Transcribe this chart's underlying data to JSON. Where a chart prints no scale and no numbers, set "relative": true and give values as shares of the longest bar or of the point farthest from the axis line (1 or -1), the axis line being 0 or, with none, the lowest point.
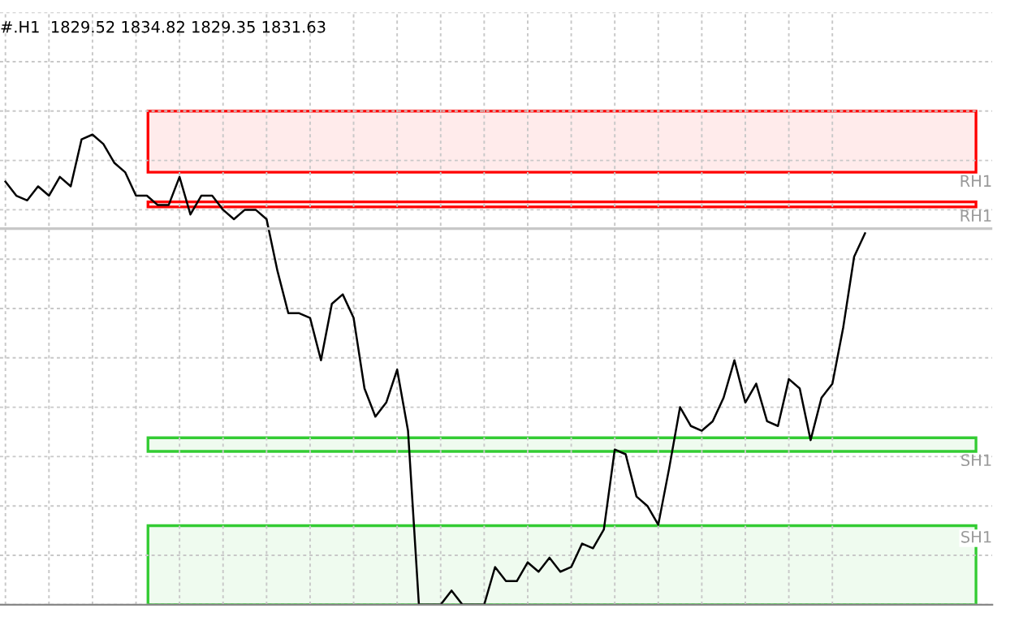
{
  "chart_data": {
    "type": "line",
    "title": "#.H1  1829.52 1834.82 1829.35 1831.63",
    "relative": true,
    "categories": [
      null,
      null,
      null,
      null,
      null,
      null,
      null,
      null,
      null,
      null,
      null,
      null,
      null,
      null,
      null,
      null,
      null,
      null,
      null,
      null,
      null,
      null,
      null,
      null,
      null,
      null,
      null,
      null,
      null,
      null,
      null,
      null,
      null,
      null,
      null,
      null,
      null,
      null,
      null,
      null,
      null,
      null,
      null,
      null,
      null,
      null,
      null,
      null,
      null,
      null,
      null,
      null,
      null,
      null,
      null,
      null,
      null,
      null,
      null,
      null,
      null,
      null,
      null,
      null,
      null,
      null,
      null,
      null,
      null,
      null,
      null,
      null,
      null,
      null,
      null,
      null,
      null,
      null,
      null,
      null
    ],
    "series": [
      {
        "color": "#000000",
        "values": [
          0.9,
          0.87,
          0.86,
          0.89,
          0.87,
          0.91,
          0.89,
          0.99,
          1,
          0.98,
          0.94,
          0.92,
          0.87,
          0.87,
          0.85,
          0.85,
          0.91,
          0.83,
          0.87,
          0.87,
          0.84,
          0.82,
          0.84,
          0.84,
          0.82,
          0.71,
          0.62,
          0.62,
          0.61,
          0.52,
          0.64,
          0.66,
          0.61,
          0.46,
          0.4,
          0.43,
          0.5,
          0.37,
          0,
          0,
          0,
          0.03,
          0,
          0,
          0,
          0.08,
          0.05,
          0.05,
          0.09,
          0.07,
          0.1,
          0.07,
          0.08,
          0.13,
          0.12,
          0.16,
          0.33,
          0.32,
          0.23,
          0.21,
          0.17,
          0.29,
          0.42,
          0.38,
          0.37,
          0.39,
          0.44,
          0.52,
          0.43,
          0.47,
          0.39,
          0.38,
          0.48,
          0.46,
          0.35,
          0.44,
          0.47,
          0.59,
          0.74,
          0.79
        ]
      }
    ],
    "bands": [
      {
        "axis": "y",
        "from": 0.92,
        "to": 1.05,
        "label": "RH1",
        "color": "#ff0000"
      },
      {
        "axis": "y",
        "from": 0.846,
        "to": 0.857,
        "label": "RH1",
        "color": "#ff0000"
      },
      {
        "axis": "y",
        "from": 0.326,
        "to": 0.355,
        "label": "SH1",
        "color": "#33cc33"
      },
      {
        "axis": "y",
        "from": 0,
        "to": 0.168,
        "label": "SH1",
        "color": "#33cc33"
      }
    ],
    "ref_lines": [
      {
        "axis": "y",
        "value": 0.8,
        "color": "#c8c8c8",
        "line_style": "solid"
      }
    ],
    "grid": true,
    "line_style": "solid",
    "marker": "none",
    "tick_labels": false,
    "legend": false
  }
}
